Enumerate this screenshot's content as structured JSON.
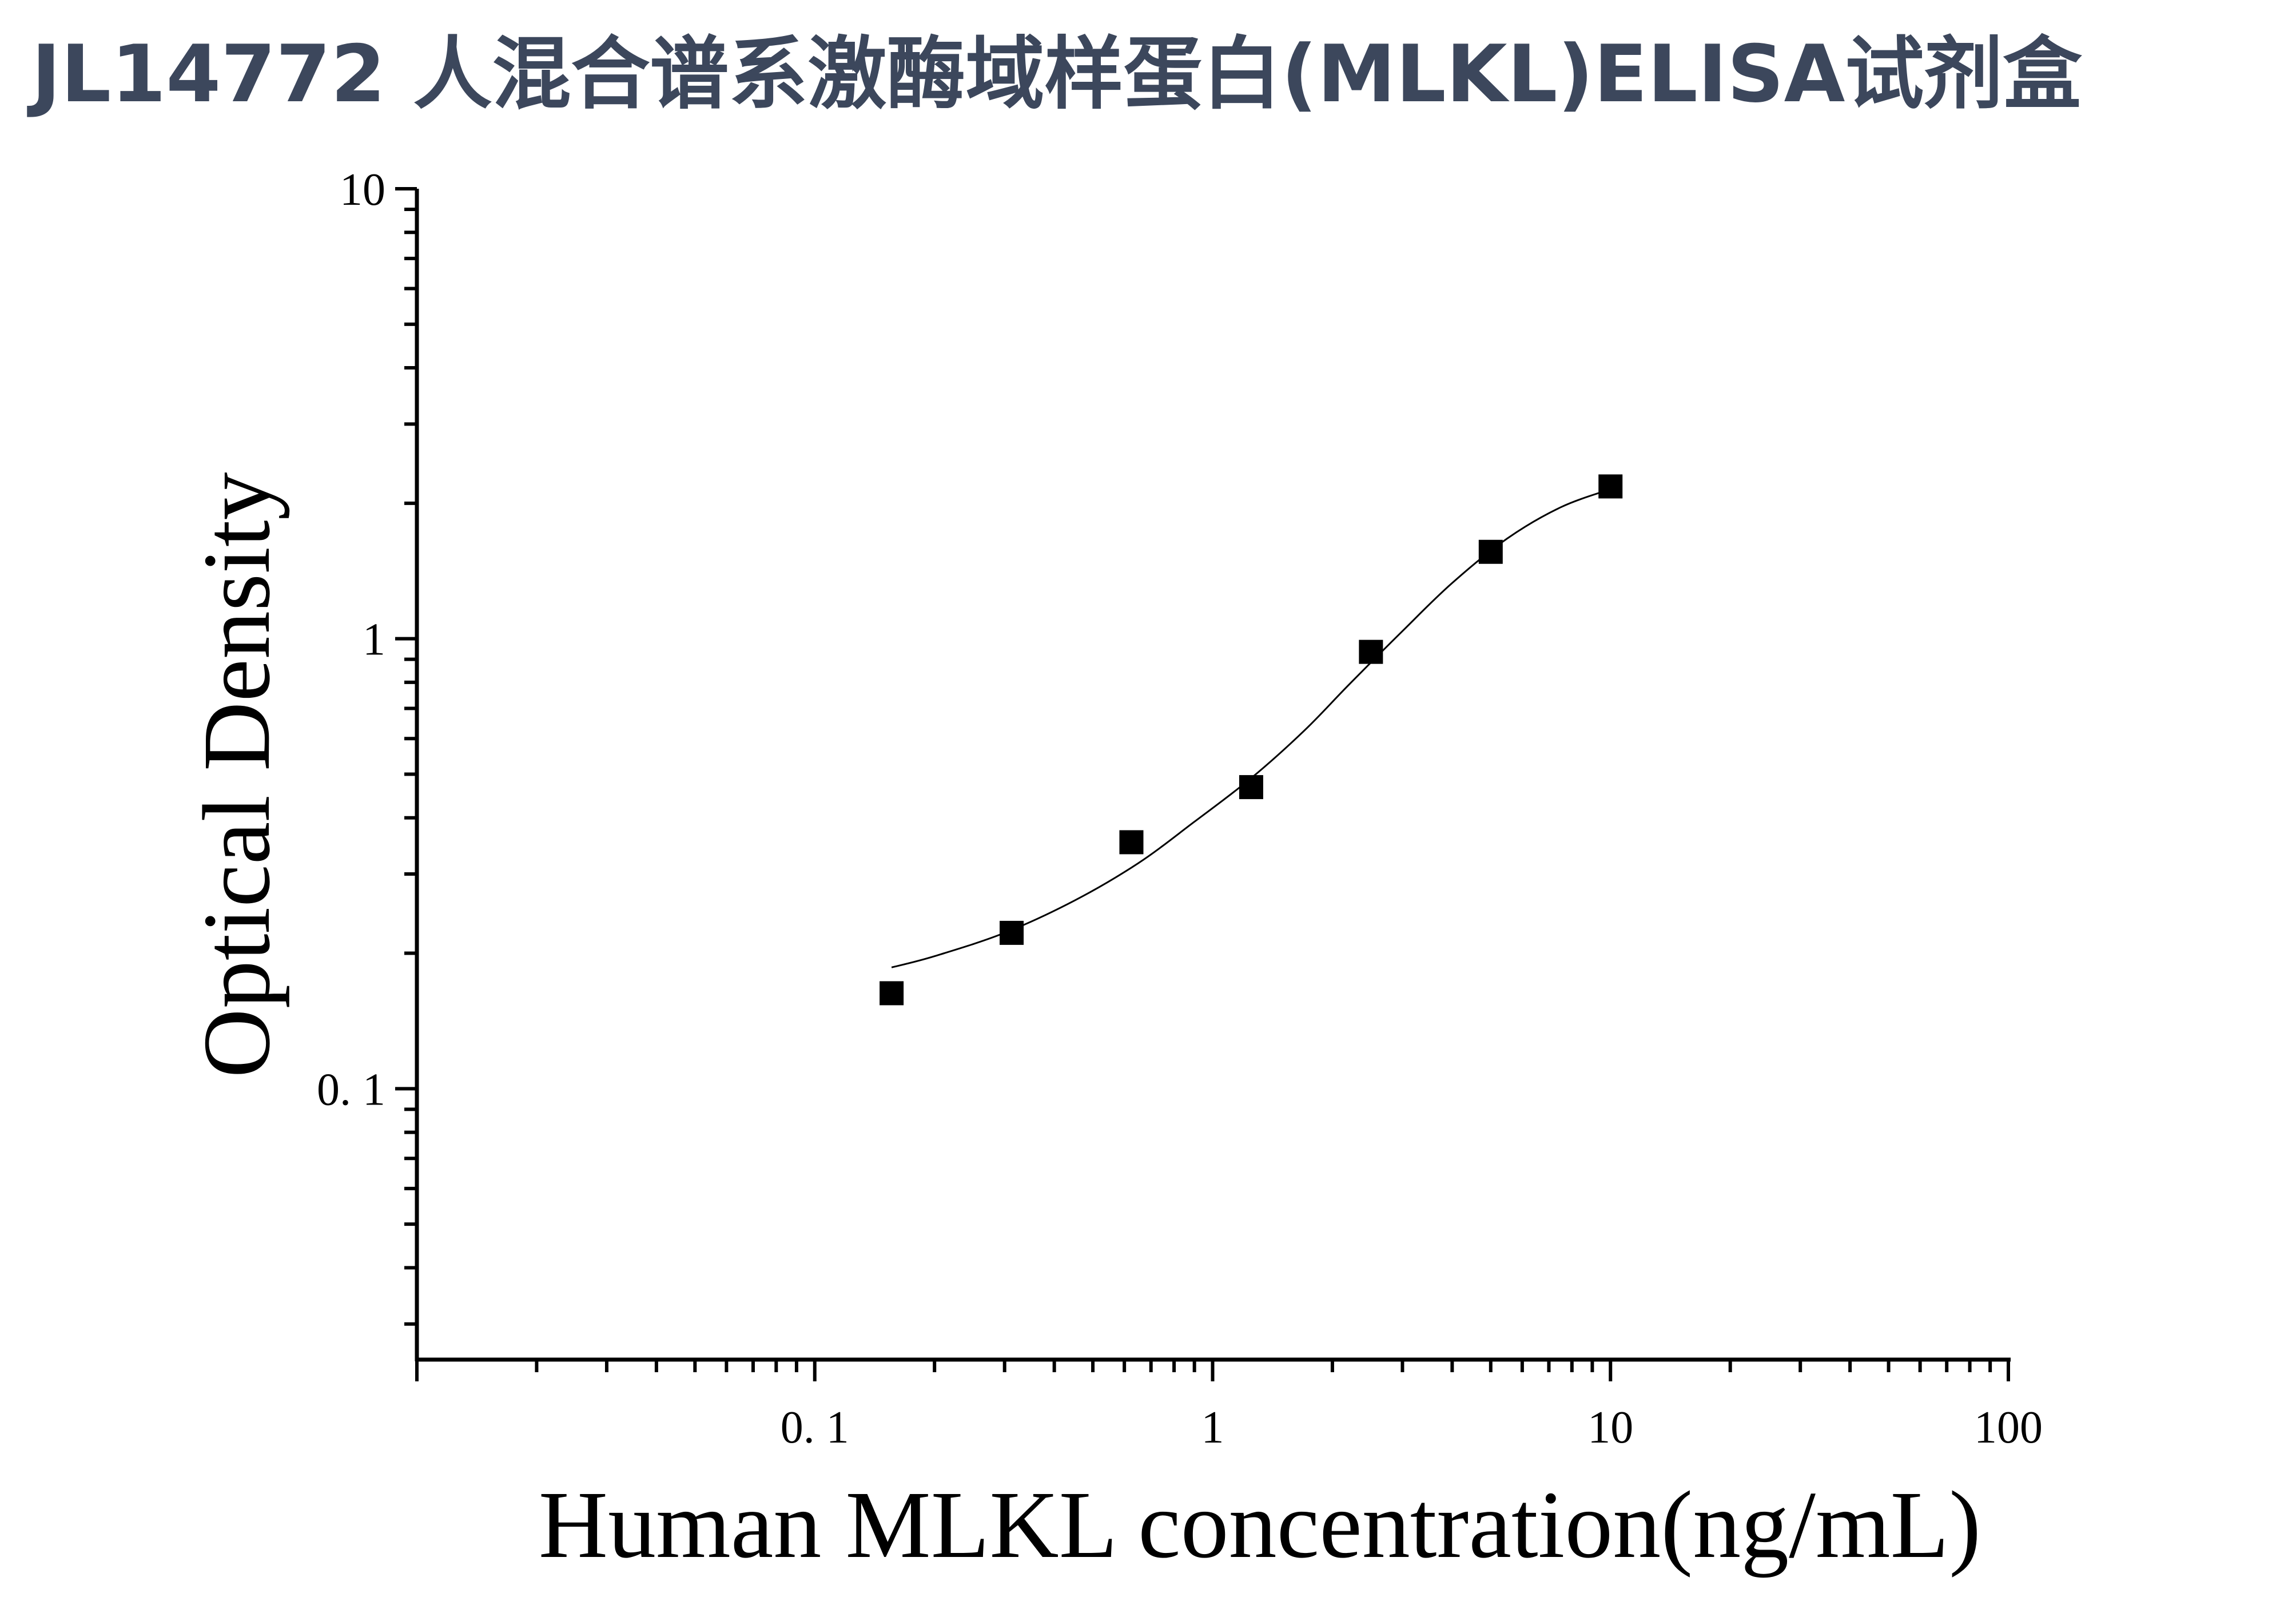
{
  "page": {
    "title": "JL14772 人混合谱系激酶域样蛋白(MLKL)ELISA试剂盒"
  },
  "chart_data": {
    "type": "scatter",
    "title": "JL14772 人混合谱系激酶域样蛋白(MLKL)ELISA试剂盒",
    "xlabel": "Human MLKL concentration(ng/mL)",
    "ylabel": "Optical Density",
    "x_scale": "log",
    "y_scale": "log",
    "xlim": [
      0.01,
      100
    ],
    "ylim": [
      0.025,
      10
    ],
    "x_ticks": [
      {
        "value": 0.1,
        "label": "0. 1"
      },
      {
        "value": 1,
        "label": "1"
      },
      {
        "value": 10,
        "label": "10"
      },
      {
        "value": 100,
        "label": "100"
      }
    ],
    "y_ticks": [
      {
        "value": 0.1,
        "label": "0. 1"
      },
      {
        "value": 1,
        "label": "1"
      },
      {
        "value": 10,
        "label": "10"
      }
    ],
    "grid": false,
    "legend": "none",
    "marker": "square",
    "color": "#000000",
    "points": [
      {
        "x": 0.156,
        "y": 0.163
      },
      {
        "x": 0.3125,
        "y": 0.222
      },
      {
        "x": 0.625,
        "y": 0.353
      },
      {
        "x": 1.25,
        "y": 0.468
      },
      {
        "x": 2.5,
        "y": 0.935
      },
      {
        "x": 5,
        "y": 1.56
      },
      {
        "x": 10,
        "y": 2.18
      }
    ],
    "fit_curve": [
      {
        "x": 0.156,
        "y": 0.186
      },
      {
        "x": 0.2,
        "y": 0.197
      },
      {
        "x": 0.3,
        "y": 0.222
      },
      {
        "x": 0.45,
        "y": 0.262
      },
      {
        "x": 0.65,
        "y": 0.317
      },
      {
        "x": 0.9,
        "y": 0.392
      },
      {
        "x": 1.25,
        "y": 0.49
      },
      {
        "x": 1.7,
        "y": 0.625
      },
      {
        "x": 2.2,
        "y": 0.79
      },
      {
        "x": 3.0,
        "y": 1.04
      },
      {
        "x": 4.0,
        "y": 1.33
      },
      {
        "x": 5.5,
        "y": 1.67
      },
      {
        "x": 7.5,
        "y": 1.96
      },
      {
        "x": 10,
        "y": 2.15
      }
    ]
  }
}
